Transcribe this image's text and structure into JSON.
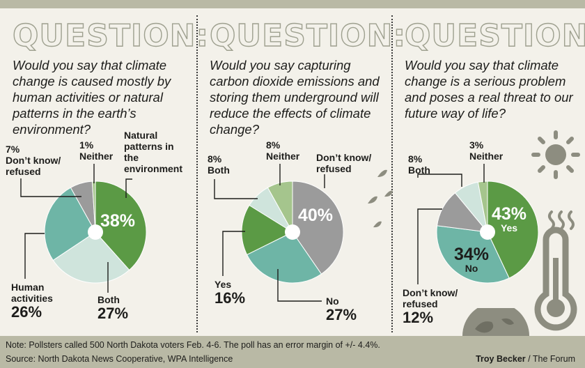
{
  "colors": {
    "dark_green": "#5b9a45",
    "light_green": "#a5c58d",
    "teal": "#6eb5a6",
    "pale_teal": "#cfe4dc",
    "gray": "#9b9b9b",
    "light_gray": "#cfcfcf",
    "background": "#f3f1ea",
    "band": "#b9b9a5"
  },
  "chart_data": [
    {
      "type": "pie",
      "heading": "QUESTION:",
      "title": "Would you say that climate change is caused mostly by human activities or natural patterns in the earth’s environment?",
      "slices": [
        {
          "name": "Natural patterns in the environment",
          "value": 38,
          "value_label": "38%",
          "color": "#5b9a45"
        },
        {
          "name": "Both",
          "value": 27,
          "value_label": "27%",
          "color": "#cfe4dc"
        },
        {
          "name": "Human activities",
          "value": 26,
          "value_label": "26%",
          "color": "#6eb5a6"
        },
        {
          "name": "Don’t know/ refused",
          "value": 7,
          "value_label": "7%",
          "color": "#9b9b9b"
        },
        {
          "name": "Neither",
          "value": 1,
          "value_label": "1%",
          "color": "#a5c58d"
        }
      ]
    },
    {
      "type": "pie",
      "heading": "QUESTION:",
      "title": "Would you say capturing carbon dioxide emissions and storing them underground will reduce the effects of climate change?",
      "slices": [
        {
          "name": "Don’t know/ refused",
          "value": 40,
          "value_label": "40%",
          "color": "#9b9b9b"
        },
        {
          "name": "No",
          "value": 27,
          "value_label": "27%",
          "color": "#6eb5a6"
        },
        {
          "name": "Yes",
          "value": 16,
          "value_label": "16%",
          "color": "#5b9a45"
        },
        {
          "name": "Both",
          "value": 8,
          "value_label": "8%",
          "color": "#cfe4dc"
        },
        {
          "name": "Neither",
          "value": 8,
          "value_label": "8%",
          "color": "#a5c58d"
        }
      ]
    },
    {
      "type": "pie",
      "heading": "QUESTION:",
      "title": "Would you say that climate change is a serious problem and poses a real threat to our future way of life?",
      "slices": [
        {
          "name": "Yes",
          "value": 43,
          "value_label": "43%",
          "color": "#5b9a45"
        },
        {
          "name": "No",
          "value": 34,
          "value_label": "34%",
          "color": "#6eb5a6"
        },
        {
          "name": "Don’t know/ refused",
          "value": 12,
          "value_label": "12%",
          "color": "#9b9b9b"
        },
        {
          "name": "Both",
          "value": 8,
          "value_label": "8%",
          "color": "#cfe4dc"
        },
        {
          "name": "Neither",
          "value": 3,
          "value_label": "3%",
          "color": "#a5c58d"
        }
      ]
    }
  ],
  "footer": {
    "note": "Note: Pollsters called 500 North Dakota voters Feb. 4-6. The poll has an error margin of +/- 4.4%.",
    "source": "Source: North Dakota News Cooperative, WPA Intelligence",
    "credit_name": "Troy Becker",
    "credit_outlet": " / The Forum"
  },
  "labels": {
    "q1": {
      "natural_line1": "Natural",
      "natural_line2": "patterns in",
      "natural_line3": "the",
      "natural_line4": "environment",
      "neither_pct": "1%",
      "neither_name": "Neither",
      "dk_pct": "7%",
      "dk_line1": "Don’t know/",
      "dk_line2": "refused",
      "human_line1": "Human",
      "human_line2": "activities",
      "human_pct": "26%",
      "both_name": "Both",
      "both_pct": "27%",
      "main_pct": "38%"
    },
    "q2": {
      "both_pct": "8%",
      "both_name": "Both",
      "neither_pct": "8%",
      "neither_name": "Neither",
      "dk_line1": "Don’t know/",
      "dk_line2": "refused",
      "yes_name": "Yes",
      "yes_pct": "16%",
      "no_name": "No",
      "no_pct": "27%",
      "main_pct": "40%"
    },
    "q3": {
      "both_pct": "8%",
      "both_name": "Both",
      "neither_pct": "3%",
      "neither_name": "Neither",
      "dk_line1": "Don’t know/",
      "dk_line2": "refused",
      "dk_pct": "12%",
      "yes_pct": "43%",
      "yes_name": "Yes",
      "no_pct": "34%",
      "no_name": "No"
    }
  }
}
